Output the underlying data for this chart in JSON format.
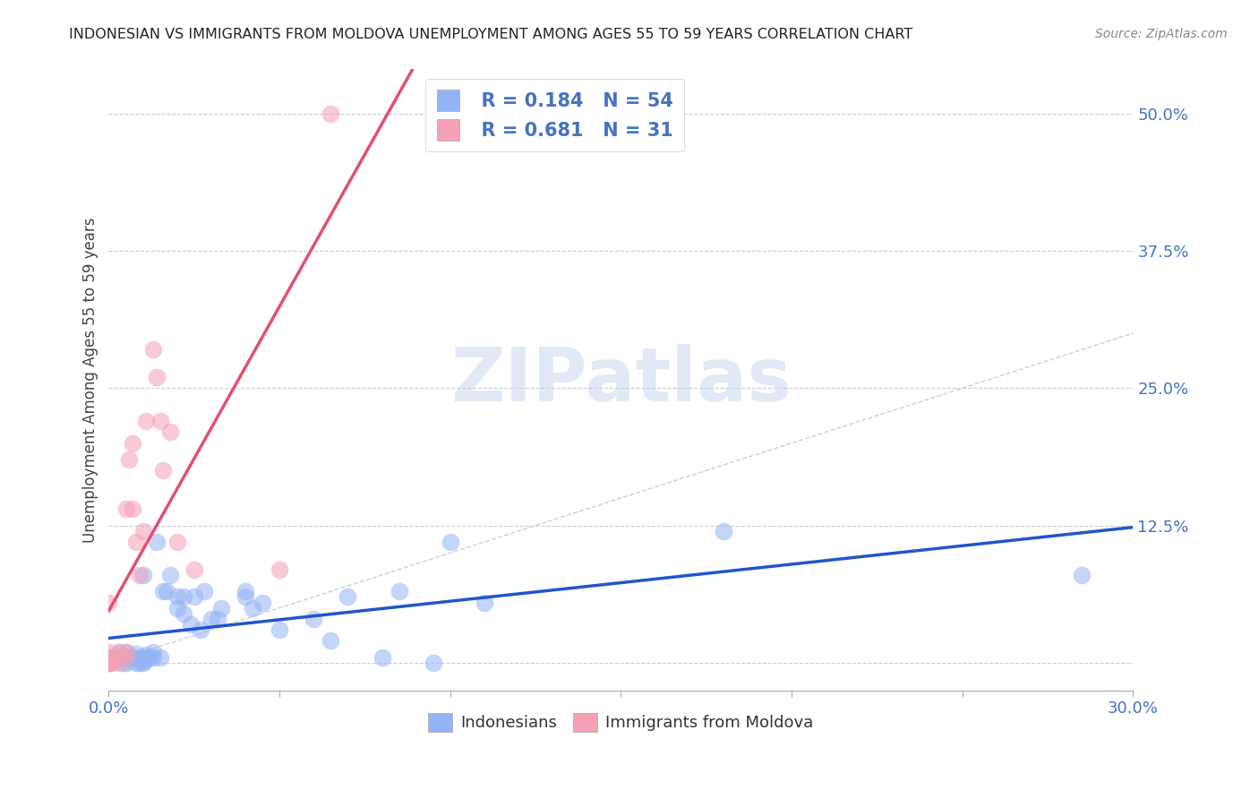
{
  "title": "INDONESIAN VS IMMIGRANTS FROM MOLDOVA UNEMPLOYMENT AMONG AGES 55 TO 59 YEARS CORRELATION CHART",
  "source": "Source: ZipAtlas.com",
  "ylabel": "Unemployment Among Ages 55 to 59 years",
  "xlim": [
    0.0,
    0.3
  ],
  "ylim": [
    -0.025,
    0.54
  ],
  "yticks": [
    0.0,
    0.125,
    0.25,
    0.375,
    0.5
  ],
  "ytick_labels": [
    "",
    "12.5%",
    "25.0%",
    "37.5%",
    "50.0%"
  ],
  "xticks": [
    0.0,
    0.05,
    0.1,
    0.15,
    0.2,
    0.25,
    0.3
  ],
  "xtick_labels": [
    "0.0%",
    "",
    "",
    "",
    "",
    "",
    "30.0%"
  ],
  "r_indonesian": 0.184,
  "n_indonesian": 54,
  "r_moldova": 0.681,
  "n_moldova": 31,
  "legend_labels": [
    "Indonesians",
    "Immigrants from Moldova"
  ],
  "color_indonesian": "#92b4f4",
  "color_moldova": "#f4a0b5",
  "trendline_color_indonesian": "#2255cc",
  "trendline_color_moldova": "#e05070",
  "diagonal_color": "#cccccc",
  "watermark_zip": "ZIP",
  "watermark_atlas": "atlas",
  "indonesian_x": [
    0.0,
    0.002,
    0.003,
    0.004,
    0.005,
    0.005,
    0.005,
    0.006,
    0.007,
    0.008,
    0.008,
    0.009,
    0.009,
    0.009,
    0.01,
    0.01,
    0.01,
    0.01,
    0.011,
    0.011,
    0.012,
    0.013,
    0.013,
    0.014,
    0.015,
    0.016,
    0.017,
    0.018,
    0.02,
    0.02,
    0.022,
    0.022,
    0.024,
    0.025,
    0.027,
    0.028,
    0.03,
    0.032,
    0.033,
    0.04,
    0.04,
    0.042,
    0.045,
    0.05,
    0.06,
    0.065,
    0.07,
    0.08,
    0.085,
    0.095,
    0.1,
    0.11,
    0.18,
    0.285
  ],
  "indonesian_y": [
    0.0,
    0.005,
    0.01,
    0.0,
    0.0,
    0.005,
    0.01,
    0.005,
    0.005,
    0.0,
    0.008,
    0.003,
    0.005,
    0.0,
    0.0,
    0.002,
    0.005,
    0.08,
    0.003,
    0.007,
    0.005,
    0.005,
    0.01,
    0.11,
    0.005,
    0.065,
    0.065,
    0.08,
    0.05,
    0.06,
    0.045,
    0.06,
    0.035,
    0.06,
    0.03,
    0.065,
    0.04,
    0.04,
    0.05,
    0.06,
    0.065,
    0.05,
    0.055,
    0.03,
    0.04,
    0.02,
    0.06,
    0.005,
    0.065,
    0.0,
    0.11,
    0.055,
    0.12,
    0.08
  ],
  "moldova_x": [
    0.0,
    0.0,
    0.0,
    0.0,
    0.0,
    0.0,
    0.0,
    0.001,
    0.001,
    0.002,
    0.003,
    0.003,
    0.005,
    0.005,
    0.005,
    0.006,
    0.007,
    0.007,
    0.008,
    0.009,
    0.01,
    0.011,
    0.013,
    0.014,
    0.015,
    0.016,
    0.018,
    0.02,
    0.025,
    0.05,
    0.065
  ],
  "moldova_y": [
    0.0,
    0.0,
    0.0,
    0.005,
    0.005,
    0.01,
    0.055,
    0.0,
    0.005,
    0.005,
    0.0,
    0.01,
    0.005,
    0.01,
    0.14,
    0.185,
    0.14,
    0.2,
    0.11,
    0.08,
    0.12,
    0.22,
    0.285,
    0.26,
    0.22,
    0.175,
    0.21,
    0.11,
    0.085,
    0.085,
    0.5
  ]
}
